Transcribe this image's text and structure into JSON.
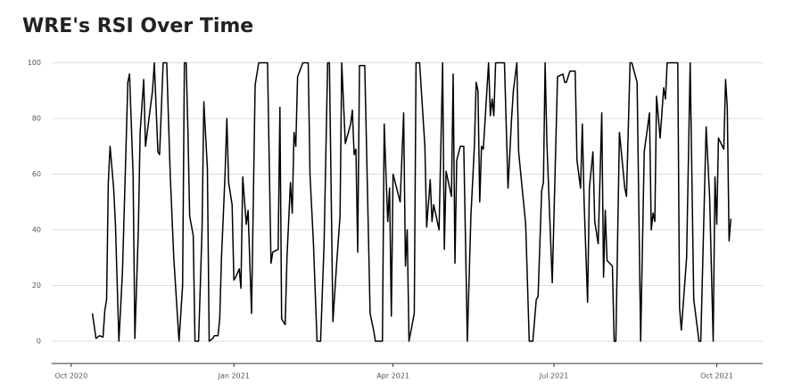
{
  "chart_data": {
    "type": "line",
    "title": "WRE's RSI Over Time",
    "x": [
      12,
      14,
      16,
      18,
      19,
      20,
      21,
      22,
      24,
      25,
      27,
      29,
      31,
      32,
      33,
      35,
      36,
      38,
      39,
      41,
      42,
      44,
      46,
      47,
      49,
      50,
      52,
      54,
      56,
      58,
      61,
      63,
      64,
      65,
      66,
      67,
      69,
      70,
      72,
      74,
      75,
      77,
      78,
      80,
      81,
      83,
      84,
      85,
      87,
      88,
      89,
      91,
      92,
      93,
      95,
      96,
      97,
      99,
      100,
      102,
      104,
      106,
      111,
      113,
      114,
      117,
      118,
      119,
      121,
      122,
      124,
      125,
      126,
      127,
      128,
      131,
      134,
      135,
      137,
      139,
      141,
      143,
      145,
      146,
      148,
      150,
      152,
      153,
      155,
      158,
      159,
      160,
      161,
      162,
      163,
      166,
      168,
      169,
      171,
      172,
      176,
      177,
      178,
      179,
      180,
      181,
      182,
      186,
      188,
      189,
      190,
      191,
      194,
      195,
      197,
      200,
      201,
      203,
      204,
      205,
      208,
      210,
      211,
      212,
      215,
      216,
      217,
      218,
      220,
      222,
      224,
      226,
      228,
      229,
      230,
      231,
      232,
      233,
      236,
      237,
      238,
      239,
      240,
      245,
      247,
      249,
      250,
      252,
      253,
      257,
      259,
      261,
      263,
      264,
      266,
      267,
      268,
      269,
      272,
      275,
      278,
      279,
      280,
      282,
      285,
      286,
      288,
      289,
      290,
      292,
      293,
      295,
      296,
      298,
      300,
      301,
      302,
      303,
      306,
      307,
      308,
      310,
      313,
      314,
      316,
      317,
      320,
      322,
      324,
      327,
      328,
      329,
      330,
      331,
      333,
      335,
      336,
      337,
      343,
      344,
      345,
      348,
      350,
      352,
      355,
      356,
      359,
      361,
      363,
      364,
      365,
      366,
      369,
      370,
      371,
      372,
      373
    ],
    "values": [
      10,
      1,
      2,
      1.5,
      11,
      15,
      57,
      70,
      55,
      42,
      0,
      25,
      70,
      93,
      96,
      60,
      1,
      40,
      75,
      94,
      70,
      80,
      90,
      100,
      68,
      67,
      100,
      100,
      60,
      30,
      0,
      20,
      100,
      100,
      75,
      45,
      38,
      0,
      0,
      40,
      86,
      62,
      0,
      1,
      2,
      2,
      8,
      30,
      60,
      80,
      57,
      49,
      22,
      23,
      26,
      19,
      59,
      42,
      47,
      10,
      92,
      100,
      100,
      28,
      32,
      33,
      84,
      8,
      6,
      30,
      57,
      46,
      75,
      70,
      95,
      100,
      100,
      60,
      35,
      0,
      0,
      35,
      100,
      100,
      7,
      27,
      45,
      100,
      71,
      78,
      83,
      67,
      69,
      32,
      99,
      99,
      40,
      10,
      4,
      0,
      0,
      78,
      60,
      43,
      55,
      9,
      60,
      50,
      82,
      27,
      40,
      0,
      10,
      100,
      100,
      70,
      41,
      58,
      43,
      49,
      40,
      100,
      33,
      61,
      52,
      96,
      28,
      65,
      70,
      70,
      0,
      45,
      70,
      93,
      90,
      50,
      70,
      69,
      100,
      81,
      87,
      81,
      100,
      100,
      55,
      80,
      90,
      100,
      68,
      42,
      0,
      0,
      15,
      16,
      54,
      57,
      100,
      71,
      21,
      95,
      96,
      93,
      93,
      97,
      97,
      65,
      55,
      78,
      50,
      14,
      55,
      68,
      43,
      35,
      82,
      23,
      47,
      29,
      27,
      0,
      0,
      75,
      55,
      52,
      100,
      100,
      93,
      0,
      68,
      82,
      40,
      46,
      43,
      88,
      73,
      91,
      87,
      100,
      100,
      12,
      4,
      30,
      100,
      15,
      0,
      0,
      77,
      52,
      0,
      59,
      42,
      73,
      69,
      94,
      84,
      36,
      44
    ],
    "color": "#000000",
    "xlim": [
      -11,
      391
    ],
    "xticks": [
      {
        "value": 0,
        "label": "Oct 2020"
      },
      {
        "value": 92,
        "label": "Jan 2021"
      },
      {
        "value": 182,
        "label": "Apr 2021"
      },
      {
        "value": 273,
        "label": "Jul 2021"
      },
      {
        "value": 365,
        "label": "Oct 2021"
      }
    ],
    "ylim": [
      -8,
      104
    ],
    "yticks": [
      0,
      20,
      40,
      60,
      80,
      100
    ],
    "grid": true
  }
}
